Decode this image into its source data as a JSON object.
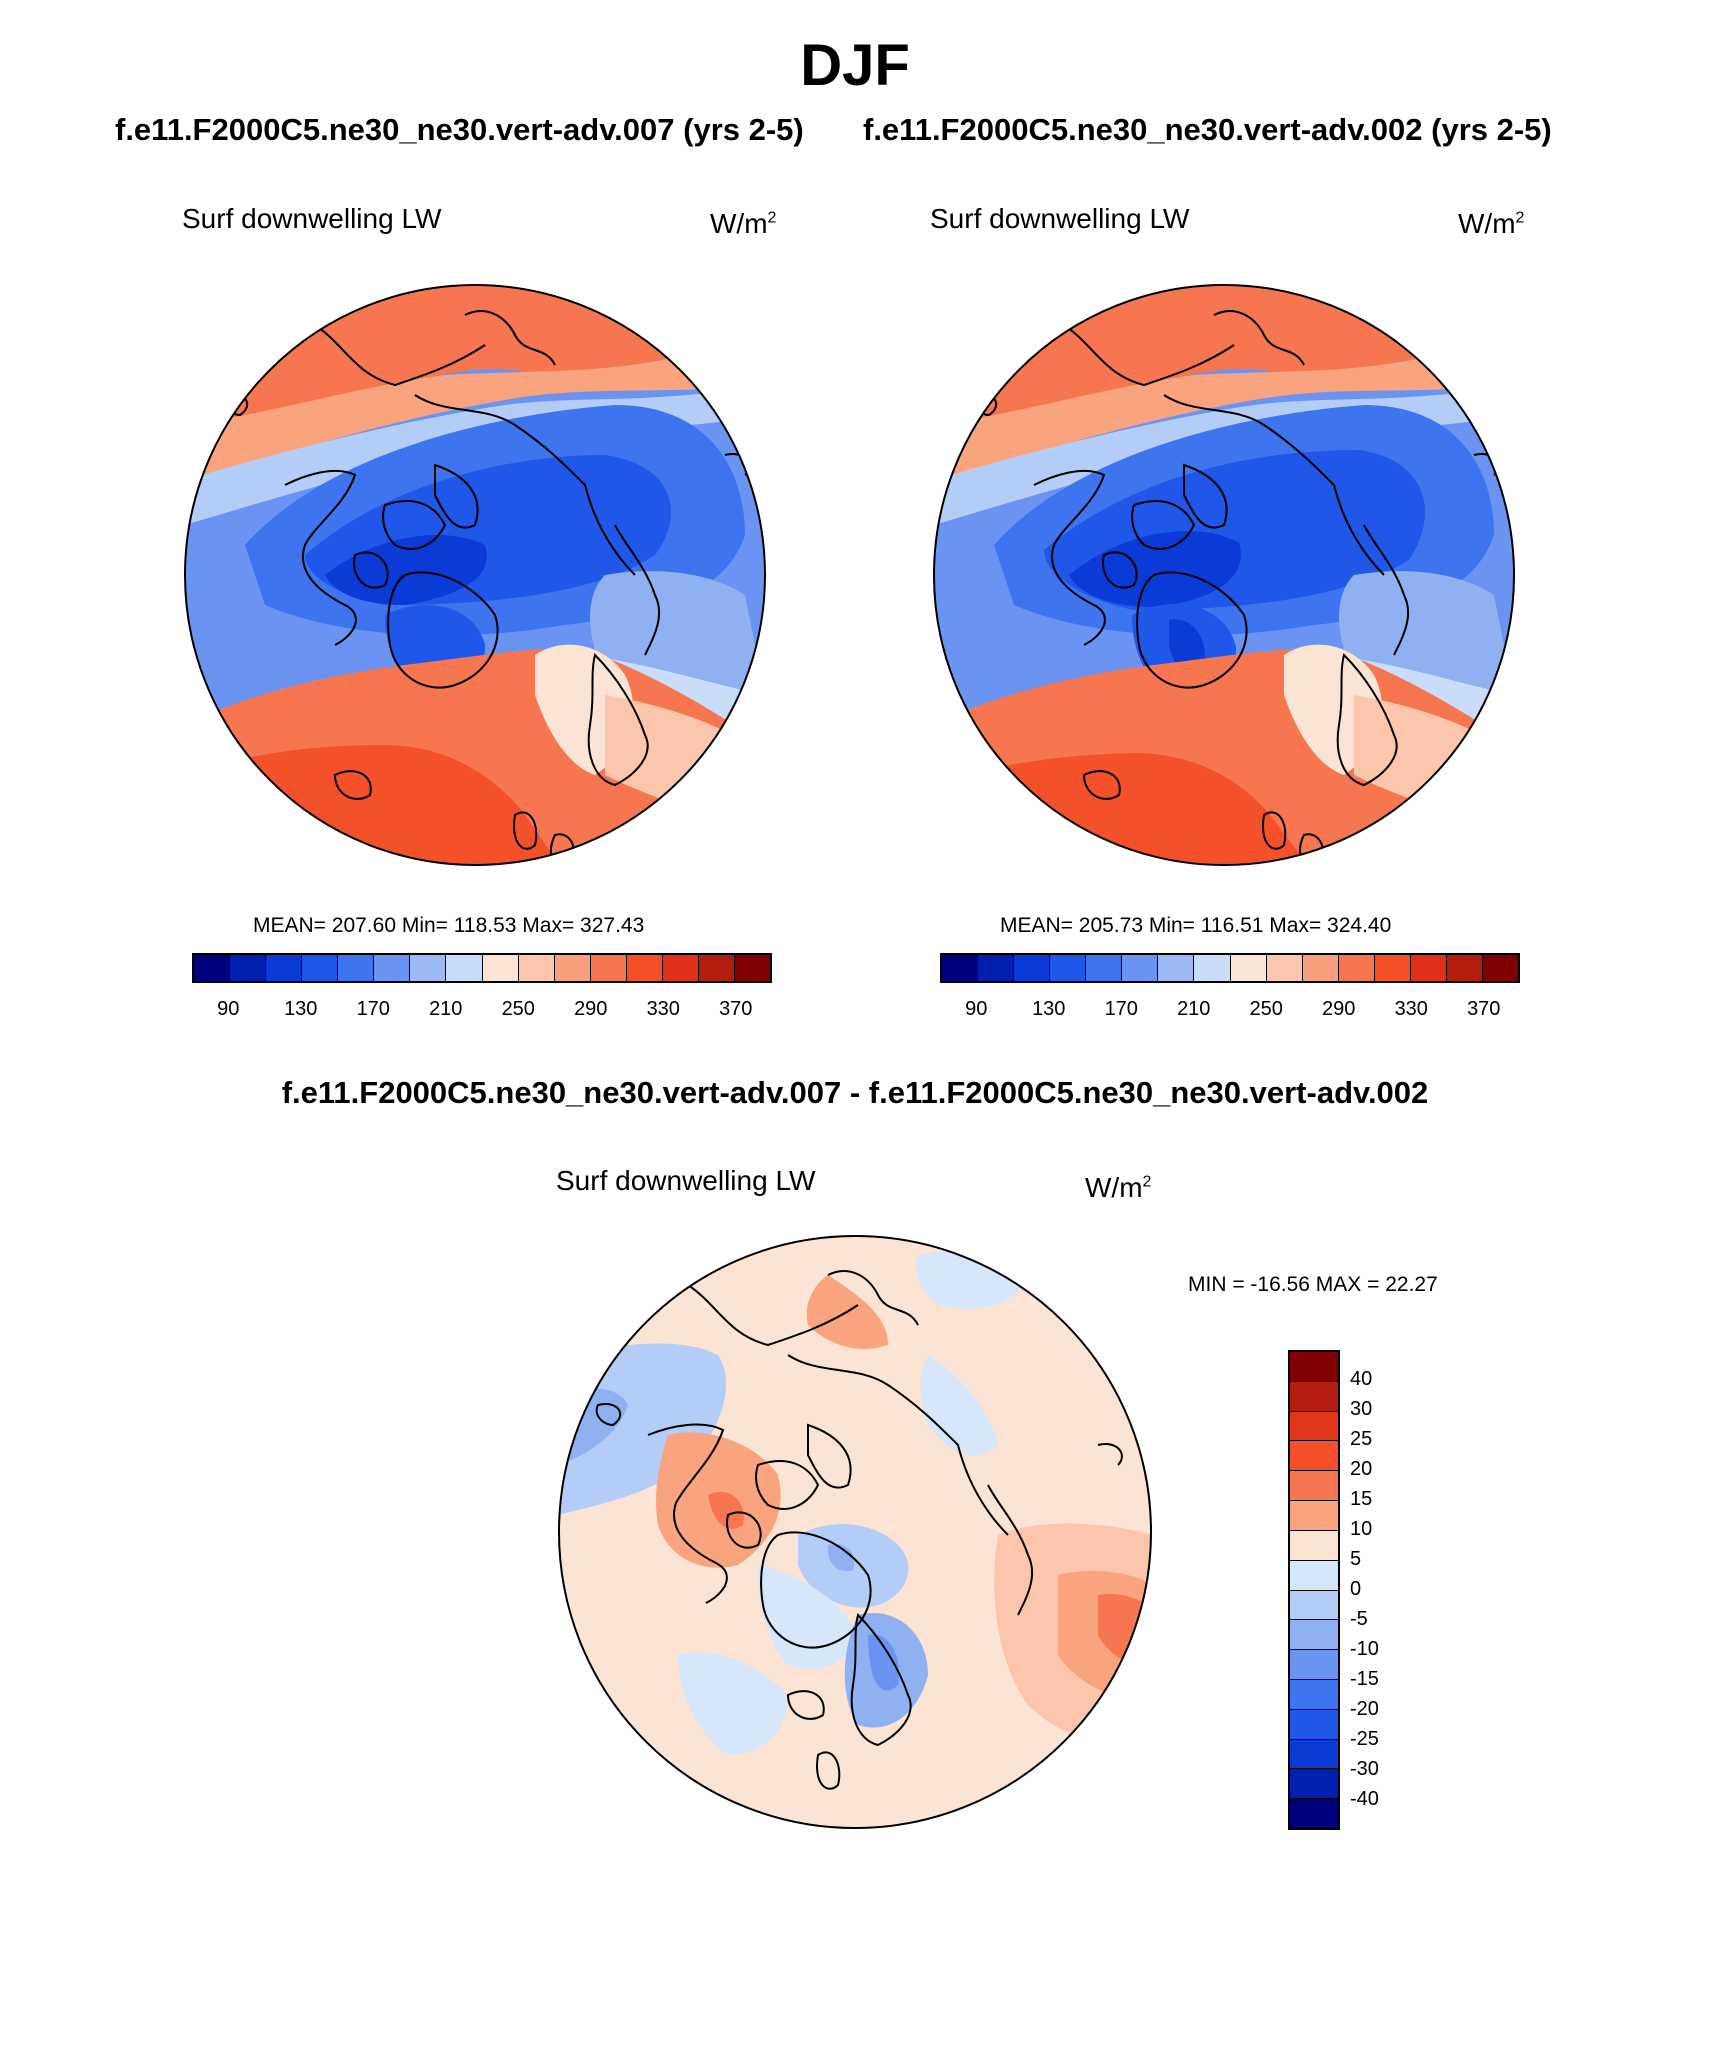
{
  "season": "DJF",
  "title_left": "f.e11.F2000C5.ne30_ne30.vert-adv.007 (yrs 2-5)",
  "title_right": "f.e11.F2000C5.ne30_ne30.vert-adv.002 (yrs 2-5)",
  "diff_title": "f.e11.F2000C5.ne30_ne30.vert-adv.007 - f.e11.F2000C5.ne30_ne30.vert-adv.002",
  "panel_left": {
    "variable": "Surf downwelling LW",
    "units_base": "W/m",
    "units_exp": "2",
    "stats": "MEAN= 207.60  Min= 118.53  Max= 327.43"
  },
  "panel_right": {
    "variable": "Surf downwelling LW",
    "units_base": "W/m",
    "units_exp": "2",
    "stats": "MEAN= 205.73  Min= 116.51  Max= 324.40"
  },
  "panel_diff": {
    "variable": "Surf downwelling LW",
    "units_base": "W/m",
    "units_exp": "2",
    "stats": "MIN = -16.56 MAX =  22.27"
  },
  "colorbar_abs": {
    "colors": [
      "#00007f",
      "#0020b0",
      "#0a3bd6",
      "#1f57e8",
      "#3f74ef",
      "#6b94f2",
      "#9cb8f5",
      "#c9dcfa",
      "#fbe4d4",
      "#fbc6ab",
      "#f89f7d",
      "#f67650",
      "#f4502a",
      "#e0301a",
      "#b31d10",
      "#800000"
    ],
    "ticks": [
      "90",
      "130",
      "170",
      "210",
      "250",
      "290",
      "330",
      "370"
    ]
  },
  "colorbar_diff": {
    "colors": [
      "#800000",
      "#b31d10",
      "#e0361a",
      "#f4512a",
      "#f67650",
      "#f9a47f",
      "#fbe4d4",
      "#d6e6fb",
      "#b3cdf7",
      "#8fb1f2",
      "#6b94f2",
      "#3f74ef",
      "#1f57e8",
      "#0a3bd6",
      "#0020b0",
      "#00007f"
    ],
    "ticks": [
      "40",
      "30",
      "25",
      "20",
      "15",
      "10",
      "5",
      "0",
      "-5",
      "-10",
      "-15",
      "-20",
      "-25",
      "-30",
      "-40"
    ]
  }
}
